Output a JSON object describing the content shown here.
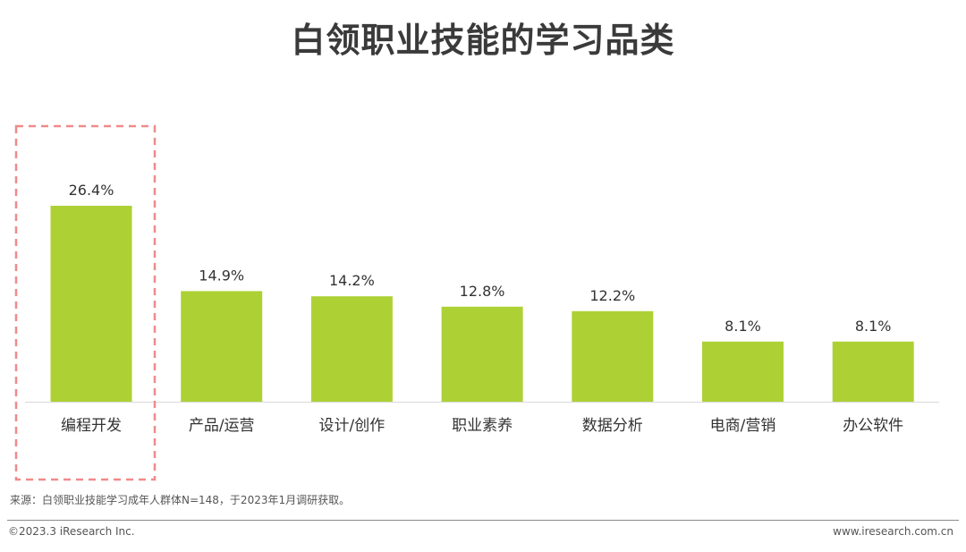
{
  "chart_data": {
    "type": "bar",
    "title": "白领职业技能的学习品类",
    "categories": [
      "编程开发",
      "产品/运营",
      "设计/创作",
      "职业素养",
      "数据分析",
      "电商/营销",
      "办公软件"
    ],
    "values": [
      26.4,
      14.9,
      14.2,
      12.8,
      12.2,
      8.1,
      8.1
    ],
    "value_labels": [
      "26.4%",
      "14.9%",
      "14.2%",
      "12.8%",
      "12.2%",
      "8.1%",
      "8.1%"
    ],
    "xlabel": "",
    "ylabel": "",
    "ylim": [
      0,
      30
    ],
    "grid": false,
    "legend": "none",
    "bar_color": "#add135",
    "highlight_category": "编程开发",
    "highlight_color": "#f08a8a"
  },
  "source_note": "来源：白领职业技能学习成年人群体N=148，于2023年1月调研获取。",
  "footer": {
    "copyright": "©2023.3 iResearch Inc.",
    "website": "www.iresearch.com.cn"
  }
}
